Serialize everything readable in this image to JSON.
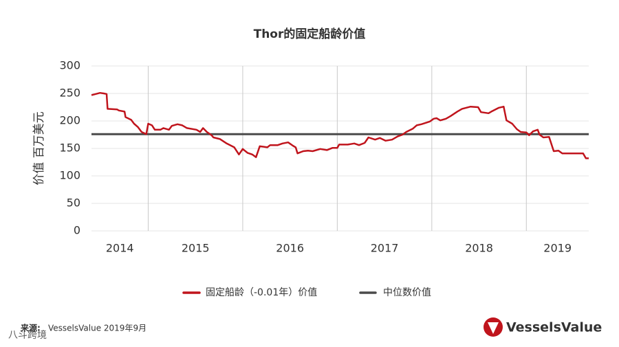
{
  "chart_data": {
    "type": "line",
    "title": "Thor的固定船龄价值",
    "ylabel": "价值 百万美元",
    "x_labels": [
      "2014",
      "2015",
      "2016",
      "2017",
      "2018",
      "2019"
    ],
    "xlim": [
      2014.4,
      2019.66
    ],
    "xticks": [
      2015,
      2016,
      2017,
      2018,
      2019
    ],
    "ylim": [
      0,
      300
    ],
    "yticks": [
      0,
      50,
      100,
      150,
      200,
      250,
      300
    ],
    "grid": true,
    "x": [
      2014.4,
      2014.49,
      2014.53,
      2014.56,
      2014.57,
      2014.67,
      2014.69,
      2014.75,
      2014.76,
      2014.82,
      2014.85,
      2014.89,
      2014.93,
      2014.98,
      2015.0,
      2015.04,
      2015.07,
      2015.13,
      2015.16,
      2015.22,
      2015.25,
      2015.31,
      2015.36,
      2015.41,
      2015.51,
      2015.55,
      2015.58,
      2015.62,
      2015.67,
      2015.69,
      2015.76,
      2015.83,
      2015.91,
      2015.96,
      2016.0,
      2016.05,
      2016.1,
      2016.14,
      2016.18,
      2016.26,
      2016.29,
      2016.37,
      2016.42,
      2016.48,
      2016.53,
      2016.56,
      2016.58,
      2016.64,
      2016.69,
      2016.74,
      2016.82,
      2016.89,
      2016.95,
      2017.0,
      2017.02,
      2017.11,
      2017.18,
      2017.23,
      2017.29,
      2017.33,
      2017.4,
      2017.45,
      2017.51,
      2017.58,
      2017.64,
      2017.69,
      2017.73,
      2017.8,
      2017.84,
      2017.89,
      2017.98,
      2018.02,
      2018.05,
      2018.09,
      2018.15,
      2018.2,
      2018.27,
      2018.32,
      2018.41,
      2018.49,
      2018.52,
      2018.6,
      2018.63,
      2018.71,
      2018.76,
      2018.79,
      2018.85,
      2018.9,
      2018.94,
      2019.0,
      2019.03,
      2019.07,
      2019.12,
      2019.14,
      2019.18,
      2019.24,
      2019.29,
      2019.34,
      2019.38,
      2019.43,
      2019.6,
      2019.63,
      2019.66
    ],
    "series": [
      {
        "name": "固定船龄（-0.01年）价值",
        "color": "#c0141c",
        "values": [
          247,
          251,
          250,
          249,
          222,
          221,
          219,
          217,
          207,
          202,
          195,
          189,
          180,
          176,
          195,
          192,
          184,
          184,
          187,
          184,
          191,
          194,
          192,
          187,
          184,
          180,
          187,
          180,
          174,
          170,
          167,
          159,
          152,
          139,
          149,
          142,
          139,
          134,
          154,
          152,
          156,
          156,
          159,
          161,
          155,
          152,
          141,
          145,
          146,
          145,
          149,
          147,
          151,
          151,
          157,
          157,
          159,
          156,
          160,
          170,
          166,
          169,
          164,
          166,
          172,
          175,
          180,
          186,
          192,
          194,
          199,
          204,
          205,
          201,
          204,
          209,
          217,
          222,
          226,
          225,
          216,
          214,
          217,
          224,
          226,
          201,
          195,
          185,
          180,
          179,
          174,
          181,
          184,
          175,
          170,
          171,
          145,
          146,
          141,
          141,
          141,
          132,
          132
        ]
      }
    ],
    "reference_line": {
      "name": "中位数价值",
      "value": 176,
      "color": "#4a4a4a"
    },
    "source_label": "来源:",
    "source_text": "VesselsValue 2019年9月",
    "logo": "VesselsValue",
    "watermark": "八斗跨境"
  }
}
